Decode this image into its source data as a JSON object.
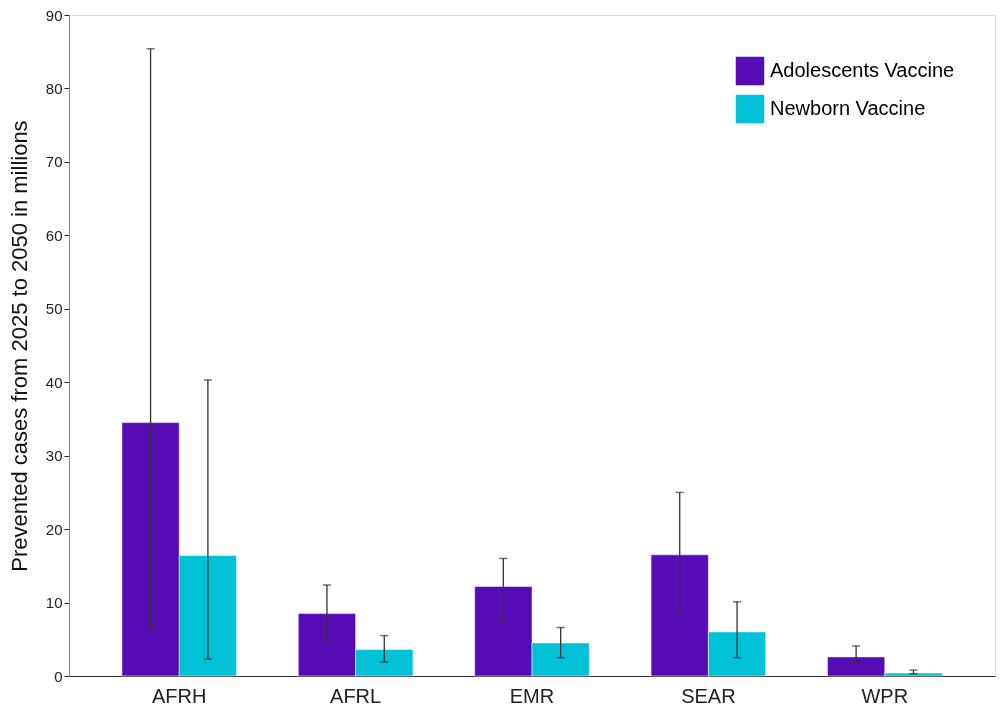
{
  "chart_data": {
    "type": "bar",
    "ylabel": "Prevented cases from 2025 to 2050 in millions",
    "categories": [
      "AFRH",
      "AFRL",
      "EMR",
      "SEAR",
      "WPR"
    ],
    "series": [
      {
        "name": "Adolescents Vaccine",
        "color": "#570bb5",
        "values": [
          34.5,
          8.5,
          12.2,
          16.5,
          2.6
        ],
        "errors": [
          [
            6.3,
            85.4
          ],
          [
            4.9,
            12.4
          ],
          [
            7.5,
            16.0
          ],
          [
            9.0,
            25.0
          ],
          [
            1.8,
            4.1
          ]
        ]
      },
      {
        "name": "Newborn Vaccine",
        "color": "#00c1d6",
        "values": [
          16.4,
          3.6,
          4.5,
          6.0,
          0.4
        ],
        "errors": [
          [
            2.3,
            40.3
          ],
          [
            1.9,
            5.5
          ],
          [
            2.5,
            6.6
          ],
          [
            2.5,
            10.1
          ],
          [
            0.3,
            0.8
          ]
        ]
      }
    ],
    "ylim": [
      0,
      90
    ],
    "yticks": [
      0,
      10,
      20,
      30,
      40,
      50,
      60,
      70,
      80,
      90
    ],
    "grid": false,
    "legend": "top right"
  }
}
